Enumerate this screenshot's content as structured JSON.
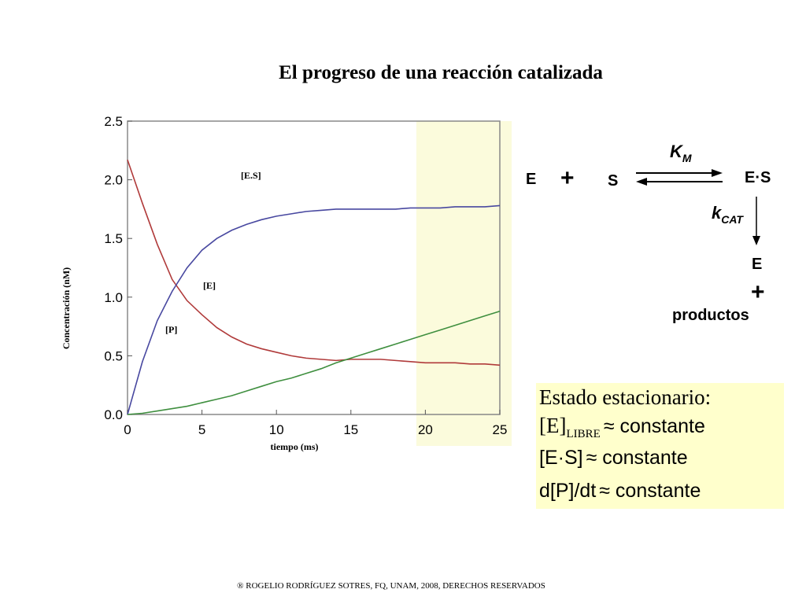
{
  "title": "El progreso de una reacción catalizada",
  "chart_data": {
    "type": "line",
    "x": [
      0,
      1,
      2,
      3,
      4,
      5,
      6,
      7,
      8,
      9,
      10,
      11,
      12,
      13,
      14,
      15,
      16,
      17,
      18,
      19,
      20,
      21,
      22,
      23,
      24,
      25
    ],
    "series": [
      {
        "name": "[E]",
        "color": "#b03a3a",
        "values": [
          2.17,
          1.8,
          1.45,
          1.15,
          0.97,
          0.85,
          0.74,
          0.66,
          0.6,
          0.56,
          0.53,
          0.5,
          0.48,
          0.47,
          0.46,
          0.47,
          0.47,
          0.47,
          0.46,
          0.45,
          0.44,
          0.44,
          0.44,
          0.43,
          0.43,
          0.42
        ]
      },
      {
        "name": "[E.S]",
        "color": "#4848a0",
        "values": [
          0,
          0.45,
          0.8,
          1.05,
          1.25,
          1.4,
          1.5,
          1.57,
          1.62,
          1.66,
          1.69,
          1.71,
          1.73,
          1.74,
          1.75,
          1.75,
          1.75,
          1.75,
          1.75,
          1.76,
          1.76,
          1.76,
          1.77,
          1.77,
          1.77,
          1.78
        ]
      },
      {
        "name": "[P]",
        "color": "#3f8f3f",
        "values": [
          0,
          0.01,
          0.03,
          0.05,
          0.07,
          0.1,
          0.13,
          0.16,
          0.2,
          0.24,
          0.28,
          0.31,
          0.35,
          0.39,
          0.44,
          0.48,
          0.52,
          0.56,
          0.6,
          0.64,
          0.68,
          0.72,
          0.76,
          0.8,
          0.84,
          0.88
        ]
      }
    ],
    "xlabel": "tiempo (ms)",
    "ylabel": "Concentración (nM)",
    "xlim": [
      0,
      25
    ],
    "xticks": [
      0,
      5,
      10,
      15,
      20,
      25
    ],
    "ylim": [
      0,
      2.5
    ],
    "yticks": [
      {
        "value": 0,
        "label": "0.0"
      },
      0.5,
      {
        "value": 1,
        "label": "1.0"
      },
      1.5,
      {
        "value": 2,
        "label": "2.0"
      },
      2.5
    ]
  },
  "scheme": {
    "e": "E",
    "plus1": "+",
    "s": "S",
    "km": "K",
    "km_sub": "M",
    "es": "E·S",
    "kcat": "k",
    "kcat_sub": "CAT",
    "e2": "E",
    "plus2": "+",
    "products": "productos"
  },
  "box": {
    "heading": "Estado estacionario:",
    "l1a": "[E]",
    "l1sub": "LIBRE",
    "l1b": "≈ constante",
    "l2a": "[E·S]",
    "l2b": "≈ constante",
    "l3a": "d[P]/dt",
    "l3b": "≈ constante"
  },
  "footer": "® ROGELIO RODRÍGUEZ SOTRES, FQ, UNAM, 2008, DERECHOS RESERVADOS"
}
